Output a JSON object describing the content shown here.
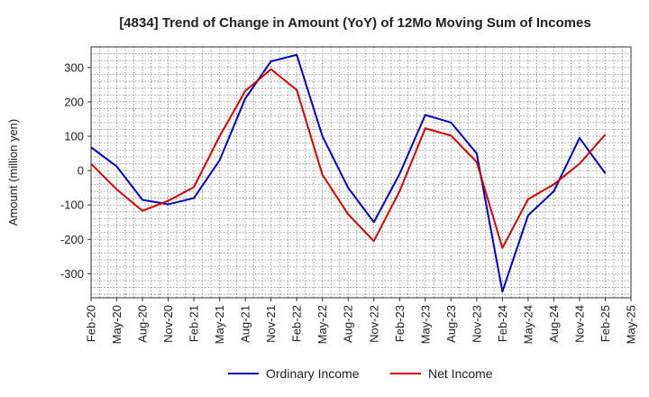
{
  "chart_data": {
    "type": "line",
    "title": "[4834]  Trend of Change in Amount (YoY) of 12Mo Moving Sum of Incomes",
    "ylabel": "Amount (million yen)",
    "xlabel": "",
    "ylim": [
      -370,
      360
    ],
    "yticks": [
      -300,
      -200,
      -100,
      0,
      100,
      200,
      300
    ],
    "x_tick_labels": [
      "Feb-20",
      "May-20",
      "Aug-20",
      "Nov-20",
      "Feb-21",
      "May-21",
      "Aug-21",
      "Nov-21",
      "Feb-22",
      "May-22",
      "Aug-22",
      "Nov-22",
      "Feb-23",
      "May-23",
      "Aug-23",
      "Nov-23",
      "Feb-24",
      "May-24",
      "Aug-24",
      "Nov-24",
      "Feb-25",
      "May-25"
    ],
    "grid": true,
    "legend_position": "bottom",
    "series": [
      {
        "name": "Ordinary Income",
        "color": "#0000cc",
        "values": [
          68,
          12,
          -85,
          -98,
          -80,
          30,
          210,
          318,
          337,
          100,
          -50,
          -150,
          -10,
          162,
          140,
          50,
          -352,
          -130,
          -60,
          95,
          -8
        ]
      },
      {
        "name": "Net Income",
        "color": "#dd0000",
        "values": [
          20,
          -55,
          -117,
          -88,
          -48,
          100,
          232,
          295,
          235,
          -12,
          -127,
          -205,
          -60,
          123,
          102,
          25,
          -225,
          -83,
          -40,
          20,
          105
        ]
      }
    ]
  }
}
